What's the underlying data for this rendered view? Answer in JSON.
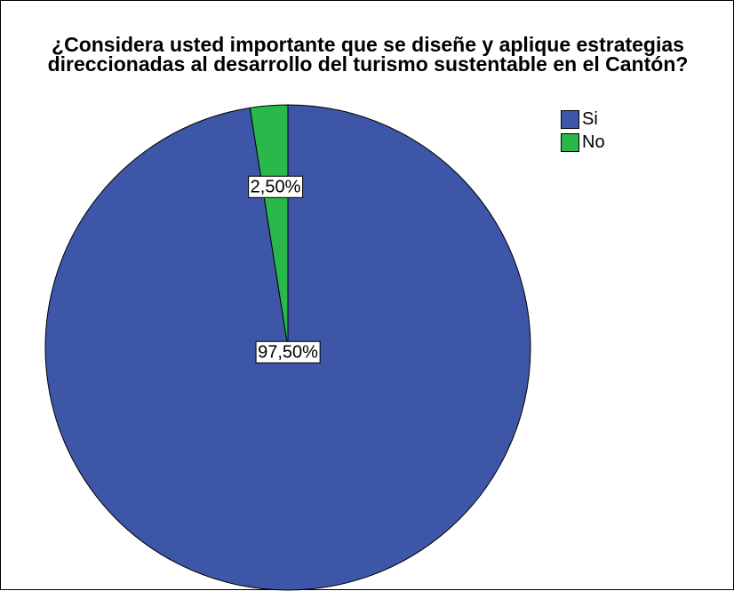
{
  "chart_data": {
    "type": "pie",
    "title_lines": [
      "¿Considera usted importante que se diseñe y aplique estrategias",
      "direccionadas al desarrollo del turismo sustentable en el Cantón?"
    ],
    "categories": [
      "Si",
      "No"
    ],
    "values": [
      97.5,
      2.5
    ],
    "data_labels": [
      "97,50%",
      "2,50%"
    ],
    "colors": [
      "#3d56a8",
      "#2bb84a"
    ],
    "start_angle": "12 o'clock",
    "direction": "counter-clockwise for No slice from top",
    "legend": {
      "position": "top-right",
      "entries": [
        "Si",
        "No"
      ]
    }
  }
}
